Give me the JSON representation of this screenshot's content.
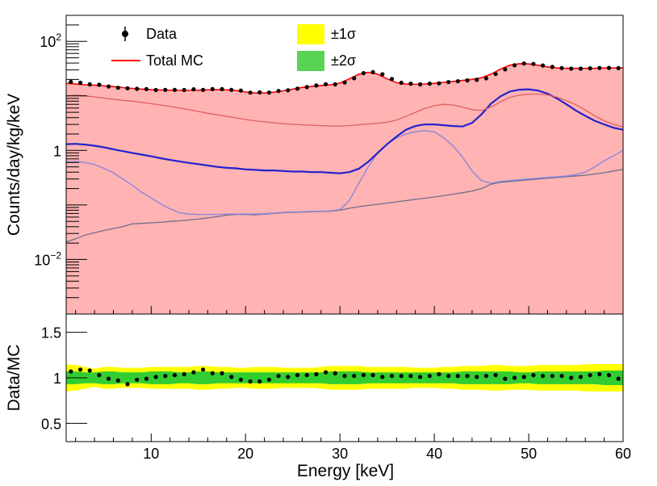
{
  "chart_data": [
    {
      "type": "area",
      "panel": "top",
      "ylabel": "Counts/day/kg/keV",
      "yscale": "log",
      "ylim": [
        0.001,
        300
      ],
      "xlim": [
        1,
        60
      ],
      "y_tick_labels": [
        {
          "value": 100,
          "base": "10",
          "exp": "2"
        },
        {
          "value": 1,
          "base": "1",
          "exp": ""
        },
        {
          "value": 0.01,
          "base": "10",
          "exp": "−2"
        }
      ],
      "legend": {
        "position": "top",
        "entries": [
          {
            "label": "Data",
            "kind": "marker",
            "color": "#000000"
          },
          {
            "label": "Total MC",
            "kind": "line",
            "color": "#ff0000"
          },
          {
            "label": "±1σ",
            "kind": "box",
            "color": "#ffff00"
          },
          {
            "label": "±2σ",
            "kind": "box",
            "color": "#59d354"
          }
        ]
      },
      "x": [
        1,
        2,
        3,
        4,
        5,
        6,
        7,
        8,
        9,
        10,
        11,
        12,
        13,
        14,
        15,
        16,
        17,
        18,
        19,
        20,
        21,
        22,
        23,
        24,
        25,
        26,
        27,
        28,
        29,
        30,
        31,
        32,
        33,
        34,
        35,
        36,
        37,
        38,
        39,
        40,
        41,
        42,
        43,
        44,
        45,
        46,
        47,
        48,
        49,
        50,
        51,
        52,
        53,
        54,
        55,
        56,
        57,
        58,
        59,
        60
      ],
      "series": [
        {
          "name": "",
          "color": "#bebebe",
          "edge": "#6e6e8c",
          "values": [
            0.021,
            0.024,
            0.028,
            0.031,
            0.034,
            0.037,
            0.04,
            0.045,
            0.046,
            0.047,
            0.048,
            0.05,
            0.051,
            0.053,
            0.055,
            0.058,
            0.061,
            0.065,
            0.067,
            0.067,
            0.066,
            0.068,
            0.07,
            0.072,
            0.073,
            0.074,
            0.075,
            0.076,
            0.077,
            0.08,
            0.087,
            0.093,
            0.098,
            0.103,
            0.108,
            0.114,
            0.12,
            0.127,
            0.133,
            0.14,
            0.148,
            0.158,
            0.168,
            0.18,
            0.2,
            0.24,
            0.26,
            0.27,
            0.28,
            0.29,
            0.3,
            0.31,
            0.32,
            0.33,
            0.34,
            0.35,
            0.37,
            0.39,
            0.42,
            0.45
          ]
        },
        {
          "name": "",
          "color": "#9999f2",
          "edge": "#8484dc",
          "values": [
            0.62,
            0.63,
            0.6,
            0.55,
            0.47,
            0.39,
            0.3,
            0.23,
            0.17,
            0.135,
            0.105,
            0.085,
            0.072,
            0.068,
            0.067,
            0.067,
            0.067,
            0.068,
            0.068,
            0.068,
            0.068,
            0.069,
            0.071,
            0.073,
            0.074,
            0.075,
            0.076,
            0.077,
            0.078,
            0.082,
            0.12,
            0.25,
            0.5,
            0.9,
            1.3,
            1.7,
            2.0,
            2.2,
            2.3,
            2.2,
            1.7,
            1.2,
            0.75,
            0.42,
            0.28,
            0.25,
            0.27,
            0.28,
            0.29,
            0.3,
            0.31,
            0.32,
            0.33,
            0.34,
            0.36,
            0.4,
            0.5,
            0.65,
            0.8,
            1.0
          ]
        },
        {
          "name": "",
          "color": "#ccccfa",
          "edge": "#2222cc",
          "values": [
            1.3,
            1.32,
            1.28,
            1.22,
            1.14,
            1.05,
            0.97,
            0.9,
            0.84,
            0.78,
            0.72,
            0.67,
            0.63,
            0.59,
            0.56,
            0.53,
            0.5,
            0.48,
            0.47,
            0.45,
            0.44,
            0.43,
            0.43,
            0.42,
            0.41,
            0.41,
            0.4,
            0.4,
            0.39,
            0.38,
            0.4,
            0.46,
            0.62,
            0.9,
            1.3,
            1.8,
            2.4,
            2.8,
            3.0,
            3.0,
            2.9,
            2.8,
            2.75,
            3.2,
            4.6,
            7.2,
            9.8,
            12.0,
            13.0,
            13.2,
            12.5,
            11.0,
            9.0,
            7.0,
            5.4,
            4.3,
            3.5,
            3.0,
            2.6,
            2.4
          ]
        },
        {
          "name": "",
          "color": "#ff8080",
          "edge": "#e06060",
          "values": [
            10.0,
            10.3,
            10.0,
            9.6,
            9.1,
            8.7,
            8.3,
            8.0,
            7.6,
            7.2,
            6.8,
            6.4,
            6.0,
            5.6,
            5.2,
            4.8,
            4.5,
            4.2,
            3.95,
            3.7,
            3.5,
            3.35,
            3.2,
            3.1,
            3.0,
            2.95,
            2.9,
            2.85,
            2.8,
            2.8,
            2.85,
            2.95,
            3.05,
            3.15,
            3.3,
            3.6,
            4.2,
            5.0,
            5.9,
            6.6,
            7.0,
            6.8,
            6.2,
            5.6,
            5.4,
            6.2,
            7.8,
            9.4,
            10.3,
            10.7,
            10.8,
            10.4,
            9.5,
            8.2,
            6.9,
            5.5,
            4.3,
            3.5,
            3.0,
            2.7
          ]
        },
        {
          "name": "Total MC",
          "color": "#ffb3b3",
          "edge": "#ff0000",
          "values": [
            17.0,
            16.5,
            16.0,
            15.7,
            15.3,
            14.8,
            14.2,
            13.7,
            13.3,
            13.0,
            12.8,
            12.7,
            12.6,
            12.6,
            12.7,
            12.9,
            13.0,
            12.9,
            12.5,
            11.8,
            11.3,
            11.3,
            11.7,
            12.4,
            13.3,
            14.3,
            15.0,
            15.5,
            16.0,
            17.2,
            20.5,
            25.0,
            27.0,
            25.0,
            20.5,
            17.5,
            16.5,
            16.3,
            16.5,
            17.0,
            17.7,
            18.4,
            19.2,
            20.1,
            21.5,
            25.0,
            31.0,
            36.5,
            39.0,
            38.5,
            36.5,
            34.0,
            32.5,
            32.0,
            32.0,
            32.0,
            32.0,
            32.5,
            32.5,
            32.5
          ]
        }
      ],
      "data_points": {
        "name": "Data",
        "x": [
          1.5,
          2.5,
          3.5,
          4.5,
          5.5,
          6.5,
          7.5,
          8.5,
          9.5,
          10.5,
          11.5,
          12.5,
          13.5,
          14.5,
          15.5,
          16.5,
          17.5,
          18.5,
          19.5,
          20.5,
          21.5,
          22.5,
          23.5,
          24.5,
          25.5,
          26.5,
          27.5,
          28.5,
          29.5,
          30.5,
          31.5,
          32.5,
          33.5,
          34.5,
          35.5,
          36.5,
          37.5,
          38.5,
          39.5,
          40.5,
          41.5,
          42.5,
          43.5,
          44.5,
          45.5,
          46.5,
          47.5,
          48.5,
          49.5,
          50.5,
          51.5,
          52.5,
          53.5,
          54.5,
          55.5,
          56.5,
          57.5,
          58.5,
          59.5
        ],
        "y": [
          18.0,
          17.4,
          16.3,
          16.0,
          14.9,
          14.1,
          13.8,
          13.5,
          13.3,
          12.8,
          12.9,
          12.9,
          12.8,
          13.2,
          12.9,
          13.3,
          13.3,
          12.9,
          12.5,
          11.5,
          11.6,
          11.5,
          12.3,
          12.7,
          13.6,
          14.5,
          15.5,
          16.4,
          16.3,
          17.6,
          21.1,
          26.1,
          27.2,
          24.9,
          20.4,
          17.4,
          16.8,
          16.3,
          16.8,
          17.0,
          17.9,
          18.6,
          19.2,
          19.7,
          21.0,
          25.2,
          30.7,
          36.4,
          39.4,
          38.6,
          36.1,
          34.0,
          32.4,
          31.6,
          31.6,
          32.1,
          32.5,
          32.6,
          32.3
        ]
      }
    },
    {
      "type": "scatter",
      "panel": "bottom",
      "xlabel": "Energy [keV]",
      "ylabel": "Data/MC",
      "xlim": [
        1,
        60
      ],
      "ylim": [
        0.3,
        1.7
      ],
      "x_ticks": [
        10,
        20,
        30,
        40,
        50,
        60
      ],
      "x_tick_labels": [
        "10",
        "20",
        "30",
        "40",
        "50",
        "60"
      ],
      "y_ticks": [
        0.5,
        1,
        1.5
      ],
      "y_tick_labels": [
        "0.5",
        "1",
        "1.5"
      ],
      "bands": [
        {
          "name": "±1σ",
          "color": "#ffff00",
          "low": [
            0.85,
            0.86,
            0.88,
            0.9,
            0.88,
            0.88,
            0.89,
            0.89,
            0.89,
            0.88,
            0.88,
            0.88,
            0.88,
            0.88,
            0.87,
            0.87,
            0.88,
            0.88,
            0.89,
            0.89,
            0.88,
            0.88,
            0.88,
            0.89,
            0.89,
            0.89,
            0.89,
            0.88,
            0.87,
            0.87,
            0.87,
            0.87,
            0.88,
            0.88,
            0.88,
            0.88,
            0.88,
            0.89,
            0.89,
            0.89,
            0.88,
            0.88,
            0.87,
            0.87,
            0.87,
            0.86,
            0.86,
            0.87,
            0.87,
            0.87,
            0.86,
            0.86,
            0.86,
            0.86,
            0.86,
            0.85,
            0.85,
            0.85,
            0.85,
            0.85
          ],
          "high": [
            1.15,
            1.14,
            1.12,
            1.1,
            1.12,
            1.12,
            1.11,
            1.11,
            1.11,
            1.12,
            1.12,
            1.12,
            1.12,
            1.12,
            1.13,
            1.13,
            1.12,
            1.12,
            1.11,
            1.11,
            1.12,
            1.12,
            1.12,
            1.11,
            1.11,
            1.11,
            1.11,
            1.12,
            1.13,
            1.13,
            1.13,
            1.13,
            1.12,
            1.12,
            1.12,
            1.12,
            1.12,
            1.11,
            1.11,
            1.11,
            1.12,
            1.12,
            1.13,
            1.13,
            1.13,
            1.14,
            1.14,
            1.13,
            1.13,
            1.13,
            1.14,
            1.14,
            1.14,
            1.14,
            1.14,
            1.15,
            1.15,
            1.15,
            1.15,
            1.15
          ]
        },
        {
          "name": "±2σ",
          "color": "#32cd32",
          "low": [
            0.93,
            0.93,
            0.94,
            0.94,
            0.93,
            0.93,
            0.94,
            0.94,
            0.94,
            0.93,
            0.93,
            0.93,
            0.94,
            0.94,
            0.93,
            0.93,
            0.94,
            0.94,
            0.94,
            0.94,
            0.94,
            0.94,
            0.94,
            0.94,
            0.94,
            0.94,
            0.94,
            0.94,
            0.93,
            0.93,
            0.93,
            0.93,
            0.94,
            0.94,
            0.94,
            0.94,
            0.94,
            0.94,
            0.94,
            0.94,
            0.94,
            0.94,
            0.93,
            0.93,
            0.93,
            0.93,
            0.93,
            0.93,
            0.94,
            0.94,
            0.93,
            0.93,
            0.93,
            0.93,
            0.93,
            0.93,
            0.93,
            0.92,
            0.92,
            0.92
          ],
          "high": [
            1.07,
            1.07,
            1.06,
            1.06,
            1.07,
            1.07,
            1.06,
            1.06,
            1.06,
            1.07,
            1.07,
            1.07,
            1.06,
            1.06,
            1.07,
            1.07,
            1.06,
            1.06,
            1.06,
            1.06,
            1.06,
            1.06,
            1.06,
            1.06,
            1.06,
            1.06,
            1.06,
            1.06,
            1.07,
            1.07,
            1.07,
            1.07,
            1.06,
            1.06,
            1.06,
            1.06,
            1.06,
            1.06,
            1.06,
            1.06,
            1.06,
            1.06,
            1.07,
            1.07,
            1.07,
            1.07,
            1.07,
            1.07,
            1.06,
            1.06,
            1.07,
            1.07,
            1.07,
            1.07,
            1.07,
            1.07,
            1.07,
            1.08,
            1.08,
            1.08
          ]
        }
      ],
      "points": {
        "x": [
          1.5,
          2.5,
          3.5,
          4.5,
          5.5,
          6.5,
          7.5,
          8.5,
          9.5,
          10.5,
          11.5,
          12.5,
          13.5,
          14.5,
          15.5,
          16.5,
          17.5,
          18.5,
          19.5,
          20.5,
          21.5,
          22.5,
          23.5,
          24.5,
          25.5,
          26.5,
          27.5,
          28.5,
          29.5,
          30.5,
          31.5,
          32.5,
          33.5,
          34.5,
          35.5,
          36.5,
          37.5,
          38.5,
          39.5,
          40.5,
          41.5,
          42.5,
          43.5,
          44.5,
          45.5,
          46.5,
          47.5,
          48.5,
          49.5,
          50.5,
          51.5,
          52.5,
          53.5,
          54.5,
          55.5,
          56.5,
          57.5,
          58.5,
          59.5
        ],
        "y": [
          1.07,
          1.09,
          1.08,
          1.03,
          0.99,
          0.97,
          0.93,
          0.98,
          0.99,
          1.01,
          1.02,
          1.03,
          1.04,
          1.06,
          1.09,
          1.05,
          1.05,
          1.01,
          0.98,
          0.96,
          0.96,
          0.98,
          1.02,
          1.01,
          1.03,
          1.03,
          1.04,
          1.06,
          1.05,
          1.02,
          1.02,
          1.03,
          1.03,
          1.01,
          1.02,
          1.02,
          1.02,
          1.01,
          1.02,
          1.04,
          1.02,
          1.02,
          1.02,
          1.01,
          1.02,
          1.03,
          0.99,
          1.0,
          1.01,
          1.03,
          1.02,
          1.02,
          1.02,
          1.0,
          1.01,
          1.03,
          1.04,
          1.03,
          0.99
        ]
      }
    }
  ]
}
